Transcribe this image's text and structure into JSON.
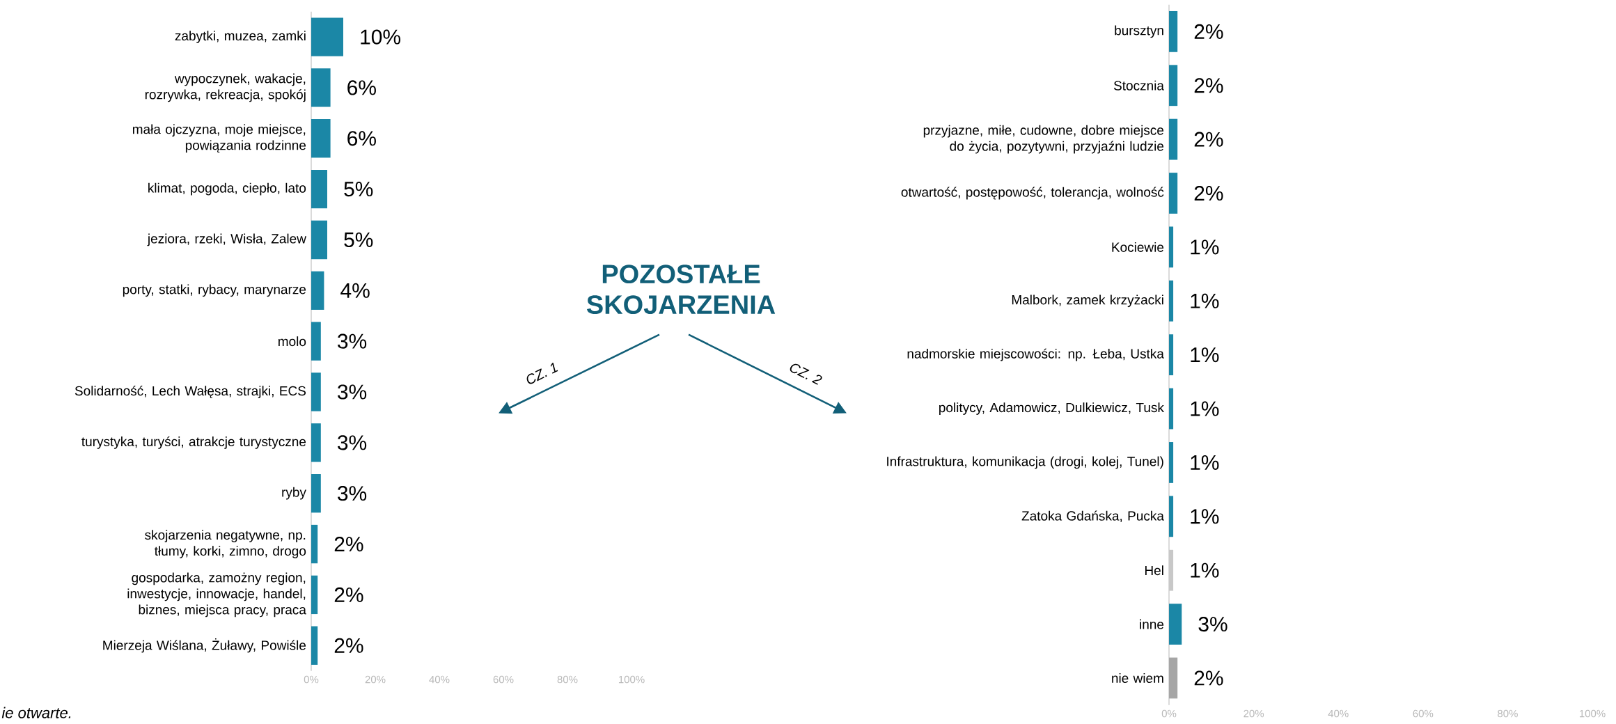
{
  "chart_data": [
    {
      "type": "bar",
      "orientation": "horizontal",
      "title": "POZOSTAŁE SKOJARZENIA",
      "categories": [
        "zabytki, muzea, zamki",
        "wypoczynek, wakacje, rozrywka, rekreacja, spokój",
        "mała ojczyzna, moje miejsce, powiązania rodzinne",
        "klimat, pogoda, ciepło, lato",
        "jeziora, rzeki, Wisła, Zalew",
        "porty, statki, rybacy, marynarze",
        "molo",
        "Solidarność, Lech Wałęsa, strajki, ECS",
        "turystyka, turyści, atrakcje turystyczne",
        "ryby",
        "skojarzenia negatywne, np. tłumy, korki, zimno, drogo",
        "gospodarka, zamożny region, inwestycje, innowacje, handel, biznes, miejsca pracy, praca",
        "Mierzeja Wiślana, Żuławy, Powiśle"
      ],
      "values": [
        10,
        6,
        6,
        5,
        5,
        4,
        3,
        3,
        3,
        3,
        2,
        2,
        2
      ],
      "colors": [
        "#1b87a6",
        "#1b87a6",
        "#1b87a6",
        "#1b87a6",
        "#1b87a6",
        "#1b87a6",
        "#1b87a6",
        "#1b87a6",
        "#1b87a6",
        "#1b87a6",
        "#1b87a6",
        "#1b87a6",
        "#1b87a6"
      ],
      "value_labels": [
        "10%",
        "6%",
        "6%",
        "5%",
        "5%",
        "4%",
        "3%",
        "3%",
        "3%",
        "3%",
        "2%",
        "2%",
        "2%"
      ],
      "xlim": [
        0,
        100
      ],
      "xticks": [
        {
          "value": 0,
          "label": "0%"
        },
        {
          "value": 20,
          "label": "20%"
        },
        {
          "value": 40,
          "label": "40%"
        },
        {
          "value": 60,
          "label": "60%"
        },
        {
          "value": 80,
          "label": "80%"
        },
        {
          "value": 100,
          "label": "100%"
        }
      ],
      "annotations": [
        "CZ. 1",
        "ie otwarte."
      ]
    },
    {
      "type": "bar",
      "orientation": "horizontal",
      "categories": [
        "bursztyn",
        "Stocznia",
        "przyjazne, miłe, cudowne, dobre miejsce do życia, pozytywni, przyjaźni ludzie",
        "otwartość, postępowość, tolerancja, wolność",
        "Kociewie",
        "Malbork, zamek krzyżacki",
        "nadmorskie miejscowości: np. Łeba, Ustka",
        "politycy, Adamowicz, Dulkiewicz, Tusk",
        "Infrastruktura, komunikacja (drogi, kolej, Tunel)",
        "Zatoka Gdańska, Pucka",
        "Hel",
        "inne",
        "nie wiem"
      ],
      "values": [
        2,
        2,
        2,
        2,
        1,
        1,
        1,
        1,
        1,
        1,
        1,
        3,
        2
      ],
      "colors": [
        "#1b87a6",
        "#1b87a6",
        "#1b87a6",
        "#1b87a6",
        "#1b87a6",
        "#1b87a6",
        "#1b87a6",
        "#1b87a6",
        "#1b87a6",
        "#1b87a6",
        "#c8c8c8",
        "#1b87a6",
        "#a6a6a6"
      ],
      "value_labels": [
        "2%",
        "2%",
        "2%",
        "2%",
        "1%",
        "1%",
        "1%",
        "1%",
        "1%",
        "1%",
        "1%",
        "3%",
        "2%"
      ],
      "xlim": [
        0,
        100
      ],
      "xticks": [
        {
          "value": 0,
          "label": "0%"
        },
        {
          "value": 20,
          "label": "20%"
        },
        {
          "value": 40,
          "label": "40%"
        },
        {
          "value": 60,
          "label": "60%"
        },
        {
          "value": 80,
          "label": "80%"
        },
        {
          "value": 100,
          "label": "100%"
        }
      ],
      "annotations": [
        "CZ. 2"
      ]
    }
  ]
}
